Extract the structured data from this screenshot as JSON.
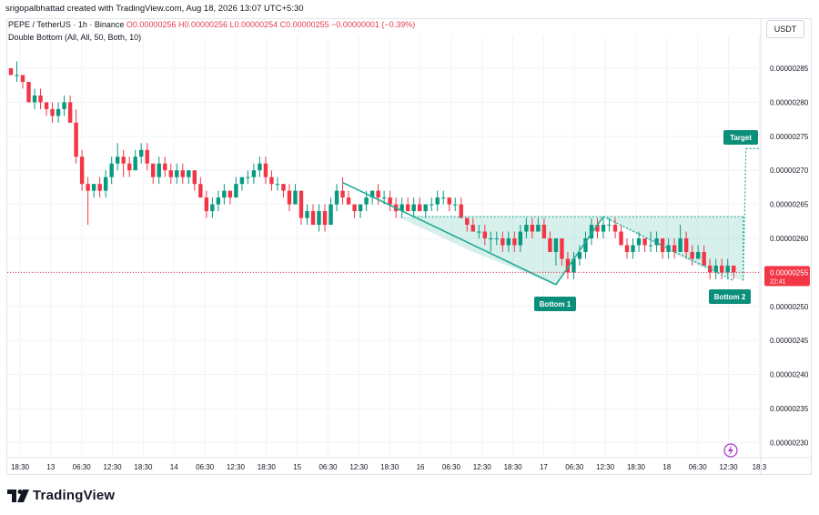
{
  "header": {
    "creator": "srigopalbhattad created with TradingView.com, Aug 18, 2026 13:07 UTC+5:30",
    "symbol_line": "PEPE / TetherUS · 1h · Binance",
    "ohlc": "O0.00000256 H0.00000256 L0.00000254 C0.00000255 −0.00000001 (−0.39%)",
    "indicator": "Double Bottom (All, All, 50, Both, 10)"
  },
  "currency_button": "USDT",
  "price_badge": {
    "price": "0.00000255",
    "timer": "22:41"
  },
  "footer_logo": "TradingView",
  "chart_data": {
    "type": "candlestick",
    "y_ticks": [
      "0.00000285",
      "0.00000280",
      "0.00000275",
      "0.00000270",
      "0.00000265",
      "0.00000260",
      "0.00000255",
      "0.00000250",
      "0.00000245",
      "0.00000240",
      "0.00000235",
      "0.00000230"
    ],
    "x_ticks": [
      "18:30",
      "13",
      "06:30",
      "12:30",
      "18:30",
      "14",
      "06:30",
      "12:30",
      "18:30",
      "15",
      "06:30",
      "12:30",
      "18:30",
      "16",
      "06:30",
      "12:30",
      "18:30",
      "17",
      "06:30",
      "12:30",
      "18:30",
      "18",
      "06:30",
      "12:30",
      "18:3"
    ],
    "ylim": [
      2.2875e-06,
      2.895e-06
    ],
    "candles": [
      [
        2.85e-06,
        2.85e-06,
        2.84e-06,
        2.84e-06
      ],
      [
        2.84e-06,
        2.86e-06,
        2.83e-06,
        2.84e-06
      ],
      [
        2.84e-06,
        2.84e-06,
        2.82e-06,
        2.83e-06
      ],
      [
        2.83e-06,
        2.83e-06,
        2.8e-06,
        2.8e-06
      ],
      [
        2.8e-06,
        2.82e-06,
        2.79e-06,
        2.81e-06
      ],
      [
        2.81e-06,
        2.82e-06,
        2.79e-06,
        2.8e-06
      ],
      [
        2.8e-06,
        2.8e-06,
        2.78e-06,
        2.79e-06
      ],
      [
        2.79e-06,
        2.8e-06,
        2.77e-06,
        2.78e-06
      ],
      [
        2.78e-06,
        2.8e-06,
        2.77e-06,
        2.79e-06
      ],
      [
        2.79e-06,
        2.81e-06,
        2.78e-06,
        2.8e-06
      ],
      [
        2.8e-06,
        2.81e-06,
        2.77e-06,
        2.77e-06
      ],
      [
        2.77e-06,
        2.79e-06,
        2.71e-06,
        2.72e-06
      ],
      [
        2.72e-06,
        2.73e-06,
        2.67e-06,
        2.68e-06
      ],
      [
        2.68e-06,
        2.69e-06,
        2.62e-06,
        2.67e-06
      ],
      [
        2.67e-06,
        2.68e-06,
        2.66e-06,
        2.68e-06
      ],
      [
        2.68e-06,
        2.69e-06,
        2.66e-06,
        2.67e-06
      ],
      [
        2.67e-06,
        2.7e-06,
        2.66e-06,
        2.69e-06
      ],
      [
        2.69e-06,
        2.72e-06,
        2.68e-06,
        2.71e-06
      ],
      [
        2.71e-06,
        2.74e-06,
        2.7e-06,
        2.72e-06
      ],
      [
        2.72e-06,
        2.73e-06,
        2.69e-06,
        2.71e-06
      ],
      [
        2.71e-06,
        2.72e-06,
        2.69e-06,
        2.7e-06
      ],
      [
        2.7e-06,
        2.73e-06,
        2.7e-06,
        2.72e-06
      ],
      [
        2.72e-06,
        2.74e-06,
        2.71e-06,
        2.73e-06
      ],
      [
        2.73e-06,
        2.74e-06,
        2.7e-06,
        2.71e-06
      ],
      [
        2.71e-06,
        2.71e-06,
        2.68e-06,
        2.69e-06
      ],
      [
        2.69e-06,
        2.72e-06,
        2.68e-06,
        2.71e-06
      ],
      [
        2.71e-06,
        2.72e-06,
        2.69e-06,
        2.7e-06
      ],
      [
        2.7e-06,
        2.71e-06,
        2.68e-06,
        2.69e-06
      ],
      [
        2.69e-06,
        2.71e-06,
        2.68e-06,
        2.7e-06
      ],
      [
        2.7e-06,
        2.71e-06,
        2.68e-06,
        2.69e-06
      ],
      [
        2.69e-06,
        2.7e-06,
        2.68e-06,
        2.7e-06
      ],
      [
        2.7e-06,
        2.7e-06,
        2.67e-06,
        2.68e-06
      ],
      [
        2.68e-06,
        2.69e-06,
        2.66e-06,
        2.66e-06
      ],
      [
        2.66e-06,
        2.67e-06,
        2.63e-06,
        2.64e-06
      ],
      [
        2.64e-06,
        2.66e-06,
        2.63e-06,
        2.65e-06
      ],
      [
        2.65e-06,
        2.67e-06,
        2.64e-06,
        2.66e-06
      ],
      [
        2.66e-06,
        2.68e-06,
        2.65e-06,
        2.67e-06
      ],
      [
        2.67e-06,
        2.67e-06,
        2.65e-06,
        2.66e-06
      ],
      [
        2.66e-06,
        2.69e-06,
        2.66e-06,
        2.68e-06
      ],
      [
        2.68e-06,
        2.69e-06,
        2.67e-06,
        2.69e-06
      ],
      [
        2.69e-06,
        2.7e-06,
        2.68e-06,
        2.69e-06
      ],
      [
        2.69e-06,
        2.71e-06,
        2.68e-06,
        2.7e-06
      ],
      [
        2.7e-06,
        2.72e-06,
        2.69e-06,
        2.71e-06
      ],
      [
        2.71e-06,
        2.72e-06,
        2.68e-06,
        2.69e-06
      ],
      [
        2.69e-06,
        2.7e-06,
        2.67e-06,
        2.68e-06
      ],
      [
        2.68e-06,
        2.69e-06,
        2.67e-06,
        2.68e-06
      ],
      [
        2.68e-06,
        2.68e-06,
        2.66e-06,
        2.67e-06
      ],
      [
        2.67e-06,
        2.68e-06,
        2.64e-06,
        2.65e-06
      ],
      [
        2.65e-06,
        2.68e-06,
        2.65e-06,
        2.67e-06
      ],
      [
        2.67e-06,
        2.67e-06,
        2.62e-06,
        2.63e-06
      ],
      [
        2.63e-06,
        2.65e-06,
        2.62e-06,
        2.64e-06
      ],
      [
        2.64e-06,
        2.65e-06,
        2.62e-06,
        2.62e-06
      ],
      [
        2.62e-06,
        2.65e-06,
        2.61e-06,
        2.64e-06
      ],
      [
        2.64e-06,
        2.65e-06,
        2.61e-06,
        2.62e-06
      ],
      [
        2.62e-06,
        2.66e-06,
        2.62e-06,
        2.65e-06
      ],
      [
        2.65e-06,
        2.68e-06,
        2.64e-06,
        2.67e-06
      ],
      [
        2.67e-06,
        2.69e-06,
        2.65e-06,
        2.66e-06
      ],
      [
        2.66e-06,
        2.67e-06,
        2.65e-06,
        2.65e-06
      ],
      [
        2.65e-06,
        2.65e-06,
        2.63e-06,
        2.64e-06
      ],
      [
        2.64e-06,
        2.65e-06,
        2.63e-06,
        2.65e-06
      ],
      [
        2.65e-06,
        2.67e-06,
        2.64e-06,
        2.66e-06
      ],
      [
        2.66e-06,
        2.67e-06,
        2.65e-06,
        2.67e-06
      ],
      [
        2.67e-06,
        2.68e-06,
        2.65e-06,
        2.66e-06
      ],
      [
        2.66e-06,
        2.67e-06,
        2.65e-06,
        2.66e-06
      ],
      [
        2.66e-06,
        2.67e-06,
        2.64e-06,
        2.65e-06
      ],
      [
        2.65e-06,
        2.66e-06,
        2.63e-06,
        2.64e-06
      ],
      [
        2.64e-06,
        2.66e-06,
        2.63e-06,
        2.65e-06
      ],
      [
        2.65e-06,
        2.66e-06,
        2.64e-06,
        2.64e-06
      ],
      [
        2.64e-06,
        2.66e-06,
        2.63e-06,
        2.65e-06
      ],
      [
        2.65e-06,
        2.66e-06,
        2.64e-06,
        2.64e-06
      ],
      [
        2.64e-06,
        2.65e-06,
        2.63e-06,
        2.65e-06
      ],
      [
        2.65e-06,
        2.66e-06,
        2.64e-06,
        2.65e-06
      ],
      [
        2.65e-06,
        2.67e-06,
        2.64e-06,
        2.66e-06
      ],
      [
        2.66e-06,
        2.67e-06,
        2.65e-06,
        2.66e-06
      ],
      [
        2.66e-06,
        2.66e-06,
        2.64e-06,
        2.65e-06
      ],
      [
        2.65e-06,
        2.66e-06,
        2.64e-06,
        2.65e-06
      ],
      [
        2.65e-06,
        2.66e-06,
        2.63e-06,
        2.63e-06
      ],
      [
        2.63e-06,
        2.63e-06,
        2.61e-06,
        2.62e-06
      ],
      [
        2.62e-06,
        2.63e-06,
        2.61e-06,
        2.61e-06
      ],
      [
        2.61e-06,
        2.62e-06,
        2.6e-06,
        2.61e-06
      ],
      [
        2.61e-06,
        2.62e-06,
        2.59e-06,
        2.6e-06
      ],
      [
        2.6e-06,
        2.61e-06,
        2.58e-06,
        2.6e-06
      ],
      [
        2.6e-06,
        2.61e-06,
        2.59e-06,
        2.6e-06
      ],
      [
        2.6e-06,
        2.61e-06,
        2.58e-06,
        2.59e-06
      ],
      [
        2.59e-06,
        2.61e-06,
        2.58e-06,
        2.6e-06
      ],
      [
        2.6e-06,
        2.61e-06,
        2.58e-06,
        2.59e-06
      ],
      [
        2.59e-06,
        2.62e-06,
        2.58e-06,
        2.61e-06
      ],
      [
        2.61e-06,
        2.63e-06,
        2.6e-06,
        2.62e-06
      ],
      [
        2.62e-06,
        2.63e-06,
        2.6e-06,
        2.61e-06
      ],
      [
        2.61e-06,
        2.63e-06,
        2.61e-06,
        2.62e-06
      ],
      [
        2.62e-06,
        2.63e-06,
        2.6e-06,
        2.6e-06
      ],
      [
        2.6e-06,
        2.61e-06,
        2.58e-06,
        2.58e-06
      ],
      [
        2.58e-06,
        2.6e-06,
        2.56e-06,
        2.6e-06
      ],
      [
        2.6e-06,
        2.6e-06,
        2.56e-06,
        2.57e-06
      ],
      [
        2.57e-06,
        2.58e-06,
        2.54e-06,
        2.55e-06
      ],
      [
        2.55e-06,
        2.58e-06,
        2.54e-06,
        2.57e-06
      ],
      [
        2.57e-06,
        2.59e-06,
        2.56e-06,
        2.58e-06
      ],
      [
        2.58e-06,
        2.61e-06,
        2.57e-06,
        2.6e-06
      ],
      [
        2.6e-06,
        2.63e-06,
        2.59e-06,
        2.62e-06
      ],
      [
        2.62e-06,
        2.63e-06,
        2.6e-06,
        2.61e-06
      ],
      [
        2.61e-06,
        2.63e-06,
        2.6e-06,
        2.62e-06
      ],
      [
        2.62e-06,
        2.63e-06,
        2.61e-06,
        2.62e-06
      ],
      [
        2.62e-06,
        2.63e-06,
        2.6e-06,
        2.61e-06
      ],
      [
        2.61e-06,
        2.62e-06,
        2.59e-06,
        2.59e-06
      ],
      [
        2.59e-06,
        2.6e-06,
        2.57e-06,
        2.58e-06
      ],
      [
        2.58e-06,
        2.6e-06,
        2.57e-06,
        2.59e-06
      ],
      [
        2.59e-06,
        2.61e-06,
        2.58e-06,
        2.6e-06
      ],
      [
        2.6e-06,
        2.6e-06,
        2.58e-06,
        2.59e-06
      ],
      [
        2.59e-06,
        2.61e-06,
        2.58e-06,
        2.59e-06
      ],
      [
        2.59e-06,
        2.61e-06,
        2.58e-06,
        2.6e-06
      ],
      [
        2.6e-06,
        2.6e-06,
        2.57e-06,
        2.58e-06
      ],
      [
        2.58e-06,
        2.6e-06,
        2.57e-06,
        2.59e-06
      ],
      [
        2.59e-06,
        2.6e-06,
        2.57e-06,
        2.58e-06
      ],
      [
        2.58e-06,
        2.62e-06,
        2.58e-06,
        2.6e-06
      ],
      [
        2.6e-06,
        2.61e-06,
        2.57e-06,
        2.58e-06
      ],
      [
        2.58e-06,
        2.59e-06,
        2.56e-06,
        2.57e-06
      ],
      [
        2.57e-06,
        2.59e-06,
        2.57e-06,
        2.58e-06
      ],
      [
        2.58e-06,
        2.59e-06,
        2.56e-06,
        2.56e-06
      ],
      [
        2.56e-06,
        2.57e-06,
        2.54e-06,
        2.55e-06
      ],
      [
        2.55e-06,
        2.57e-06,
        2.54e-06,
        2.56e-06
      ],
      [
        2.56e-06,
        2.57e-06,
        2.54e-06,
        2.55e-06
      ],
      [
        2.55e-06,
        2.57e-06,
        2.54e-06,
        2.56e-06
      ],
      [
        2.56e-06,
        2.56e-06,
        2.54e-06,
        2.55e-06
      ]
    ],
    "pattern": {
      "name": "Double Bottom",
      "bottom1_label": "Bottom 1",
      "bottom2_label": "Bottom 2",
      "target_label": "Target",
      "neckline": 2.632e-06,
      "target": 2.732e-06,
      "last_price": 2.55e-06
    }
  }
}
